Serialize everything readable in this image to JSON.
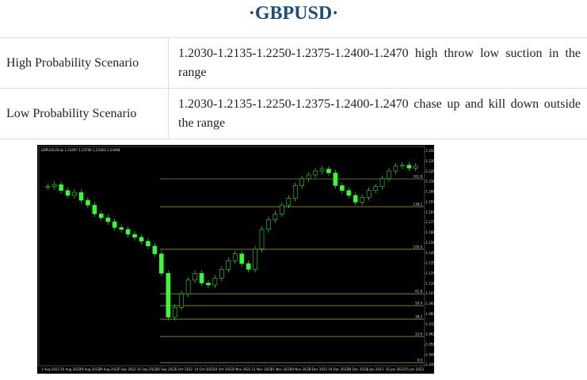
{
  "title": "·GBPUSD·",
  "table": {
    "rows": [
      [
        "High Probability Scenario",
        "1.2030-1.2135-1.2250-1.2375-1.2400-1.2470 high throw low suction in the range"
      ],
      [
        "Low Probability Scenario",
        "1.2030-1.2135-1.2250-1.2375-1.2400-1.2470 chase up and kill down outside the range"
      ]
    ]
  },
  "chart_data": {
    "type": "candlestick",
    "title": "GBPUSD,Daily 1.23497 1.23706 1.23363 1.23468",
    "color": "#33ff33",
    "values": [
      1.214,
      1.216,
      1.21,
      1.205,
      1.208,
      1.2,
      1.195,
      1.186,
      1.182,
      1.178,
      1.172,
      1.17,
      1.165,
      1.162,
      1.158,
      1.153,
      1.145,
      1.125,
      1.08,
      1.09,
      1.104,
      1.118,
      1.125,
      1.115,
      1.113,
      1.12,
      1.129,
      1.138,
      1.145,
      1.135,
      1.129,
      1.15,
      1.17,
      1.18,
      1.186,
      1.195,
      1.202,
      1.215,
      1.222,
      1.226,
      1.23,
      1.232,
      1.228,
      1.215,
      1.21,
      1.205,
      1.198,
      1.203,
      1.21,
      1.214,
      1.222,
      1.23,
      1.235,
      1.236,
      1.233,
      1.235
    ],
    "xtick_labels": [
      "1 Aug 2022",
      "10 Aug 2022",
      "19 Aug 2022",
      "29 Aug 2022",
      "7 Sep 2022",
      "16 Sep 2022",
      "26 Sep 2022",
      "5 Oct 2022",
      "14 Oct 2022",
      "24 Oct 2022",
      "2 Nov 2022",
      "11 Nov 2022",
      "21 Nov 2022",
      "30 Nov 2022",
      "9 Dec 2022",
      "19 Dec 2022",
      "28 Dec 2022",
      "6 Jan 2023",
      "16 Jan 2023",
      "25 Jan 2023"
    ],
    "ylim": [
      1.0236,
      1.2544
    ],
    "yticks": [
      {
        "value": 1.2502,
        "label": "1.25020"
      },
      {
        "value": 1.23975,
        "label": "1.23975"
      },
      {
        "value": 1.2293,
        "label": "1.22930"
      },
      {
        "value": 1.21885,
        "label": "1.21885"
      },
      {
        "value": 1.2084,
        "label": "1.20840"
      },
      {
        "value": 1.19795,
        "label": "1.19795"
      },
      {
        "value": 1.1875,
        "label": "1.18750"
      },
      {
        "value": 1.17705,
        "label": "1.17705"
      },
      {
        "value": 1.1666,
        "label": "1.16660"
      },
      {
        "value": 1.15615,
        "label": "1.15615"
      },
      {
        "value": 1.1457,
        "label": "1.14570"
      },
      {
        "value": 1.13525,
        "label": "1.13525"
      },
      {
        "value": 1.1248,
        "label": "1.12480"
      },
      {
        "value": 1.11435,
        "label": "1.11435"
      },
      {
        "value": 1.1039,
        "label": "1.10390"
      },
      {
        "value": 1.09345,
        "label": "1.09345"
      },
      {
        "value": 1.083,
        "label": "1.08300"
      },
      {
        "value": 1.07255,
        "label": "1.07255"
      },
      {
        "value": 1.0621,
        "label": "1.06210"
      },
      {
        "value": 1.05165,
        "label": "1.05165"
      },
      {
        "value": 1.0412,
        "label": "1.04120"
      },
      {
        "value": 1.03075,
        "label": "1.03075"
      }
    ],
    "levels": [
      {
        "value": 1.2219,
        "label": "161.8"
      },
      {
        "value": 1.1934,
        "label": "138.2"
      },
      {
        "value": 1.1496,
        "label": "100.0"
      },
      {
        "value": 1.104,
        "label": "61.8"
      },
      {
        "value": 1.0918,
        "label": "50.0"
      },
      {
        "value": 1.078,
        "label": "38.2"
      },
      {
        "value": 1.0601,
        "label": "23.6"
      },
      {
        "value": 1.0333,
        "label": "0.0"
      }
    ]
  }
}
